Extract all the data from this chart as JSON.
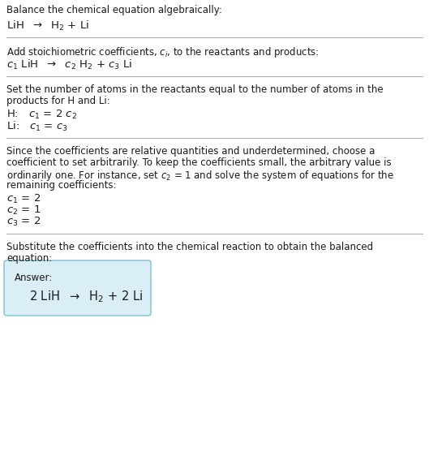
{
  "title": "Balance the chemical equation algebraically:",
  "line1_parts": [
    [
      "LiH  ",
      "normal"
    ],
    [
      "→",
      "normal"
    ],
    [
      "  H",
      "normal"
    ],
    [
      "2",
      "sub"
    ],
    [
      " + Li",
      "normal"
    ]
  ],
  "section2_header": "Add stoichiometric coefficients, $c_i$, to the reactants and products:",
  "section2_line": "$c_1$ LiH  →  $c_2$ H$_2$ + $c_3$ Li",
  "section3_header1": "Set the number of atoms in the reactants equal to the number of atoms in the",
  "section3_header2": "products for H and Li:",
  "section3_line1": "H:   $c_1$ = 2 $c_2$",
  "section3_line2": "Li:   $c_1$ = $c_3$",
  "section4_header1": "Since the coefficients are relative quantities and underdetermined, choose a",
  "section4_header2": "coefficient to set arbitrarily. To keep the coefficients small, the arbitrary value is",
  "section4_header3": "ordinarily one. For instance, set $c_2$ = 1 and solve the system of equations for the",
  "section4_header4": "remaining coefficients:",
  "section4_line1": "$c_1$ = 2",
  "section4_line2": "$c_2$ = 1",
  "section4_line3": "$c_3$ = 2",
  "section5_header1": "Substitute the coefficients into the chemical reaction to obtain the balanced",
  "section5_header2": "equation:",
  "answer_label": "Answer:",
  "answer_line": "2 LiH  →  H$_2$ + 2 Li",
  "bg_color": "#ffffff",
  "text_color": "#1a1a1a",
  "box_facecolor": "#daeef5",
  "box_edgecolor": "#7fbfcf",
  "separator_color": "#aaaaaa",
  "font_size": 8.5,
  "font_size_eq": 9.5
}
